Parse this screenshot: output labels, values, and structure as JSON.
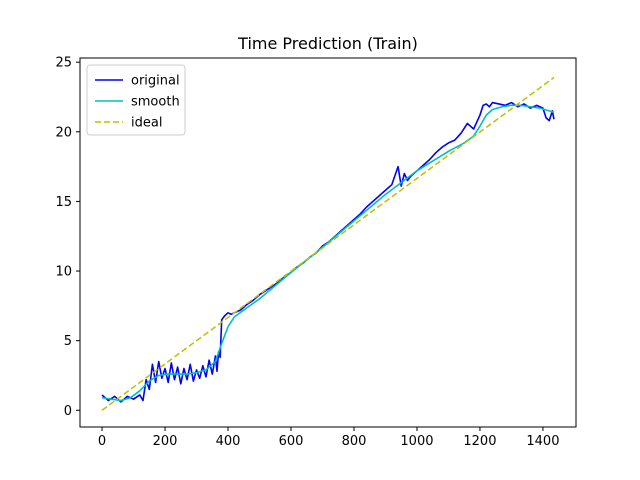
{
  "chart_data": {
    "type": "line",
    "title": "Time Prediction (Train)",
    "xlabel": "",
    "ylabel": "",
    "xlim": [
      -70,
      1505
    ],
    "ylim": [
      -1.2,
      25.3
    ],
    "x_ticks": [
      0,
      200,
      400,
      600,
      800,
      1000,
      1200,
      1400
    ],
    "y_ticks": [
      0,
      5,
      10,
      15,
      20,
      25
    ],
    "grid": false,
    "legend": {
      "placement": "top-left"
    },
    "series": [
      {
        "name": "original",
        "color": "#0000ff",
        "style": "solid",
        "x": [
          0,
          20,
          40,
          60,
          80,
          100,
          120,
          130,
          140,
          150,
          160,
          170,
          180,
          190,
          200,
          210,
          220,
          230,
          240,
          250,
          260,
          270,
          280,
          290,
          300,
          310,
          320,
          330,
          340,
          350,
          360,
          365,
          370,
          375,
          380,
          390,
          400,
          410,
          420,
          440,
          460,
          480,
          500,
          520,
          540,
          560,
          580,
          600,
          620,
          640,
          660,
          680,
          700,
          720,
          740,
          760,
          780,
          800,
          820,
          840,
          860,
          880,
          900,
          920,
          940,
          950,
          960,
          970,
          980,
          1000,
          1020,
          1040,
          1060,
          1080,
          1100,
          1120,
          1140,
          1160,
          1180,
          1190,
          1200,
          1210,
          1220,
          1230,
          1240,
          1260,
          1280,
          1300,
          1320,
          1340,
          1360,
          1380,
          1400,
          1410,
          1420,
          1430,
          1435
        ],
        "y": [
          1.1,
          0.7,
          1.0,
          0.6,
          1.0,
          0.8,
          1.1,
          0.7,
          2.2,
          1.5,
          3.3,
          2.0,
          3.5,
          2.3,
          3.0,
          2.0,
          3.4,
          2.2,
          3.1,
          1.9,
          3.0,
          2.2,
          3.3,
          2.1,
          2.9,
          2.3,
          3.2,
          2.4,
          3.6,
          2.6,
          3.9,
          2.8,
          4.2,
          3.8,
          6.5,
          6.8,
          7.0,
          6.9,
          7.0,
          7.2,
          7.6,
          7.9,
          8.3,
          8.6,
          8.9,
          9.2,
          9.6,
          9.9,
          10.3,
          10.6,
          11.0,
          11.3,
          11.8,
          12.1,
          12.5,
          12.9,
          13.3,
          13.7,
          14.1,
          14.6,
          15.0,
          15.4,
          15.8,
          16.2,
          17.5,
          16.1,
          17.0,
          16.5,
          16.8,
          17.2,
          17.6,
          18.0,
          18.5,
          18.9,
          19.2,
          19.4,
          19.9,
          20.6,
          20.2,
          20.7,
          21.2,
          21.9,
          22.0,
          21.8,
          22.1,
          22.0,
          21.9,
          22.1,
          21.8,
          22.0,
          21.7,
          21.9,
          21.7,
          21.0,
          20.8,
          21.5,
          20.9
        ]
      },
      {
        "name": "smooth",
        "color": "#00bfbf",
        "style": "solid",
        "x": [
          0,
          30,
          60,
          90,
          120,
          150,
          180,
          210,
          240,
          270,
          300,
          330,
          360,
          380,
          400,
          420,
          450,
          500,
          600,
          700,
          800,
          900,
          1000,
          1100,
          1150,
          1180,
          1200,
          1220,
          1240,
          1270,
          1300,
          1330,
          1360,
          1390,
          1420,
          1435
        ],
        "y": [
          0.9,
          0.8,
          0.7,
          0.9,
          1.4,
          2.1,
          2.5,
          2.6,
          2.6,
          2.6,
          2.7,
          2.9,
          3.5,
          4.8,
          6.0,
          6.7,
          7.2,
          8.0,
          9.9,
          11.7,
          13.6,
          15.5,
          17.2,
          18.6,
          19.2,
          19.7,
          20.4,
          21.2,
          21.6,
          21.8,
          21.9,
          21.9,
          21.8,
          21.7,
          21.5,
          21.4
        ]
      },
      {
        "name": "ideal",
        "color": "#bfbf00",
        "style": "dashed",
        "x": [
          0,
          1435
        ],
        "y": [
          0,
          23.9
        ]
      }
    ]
  }
}
